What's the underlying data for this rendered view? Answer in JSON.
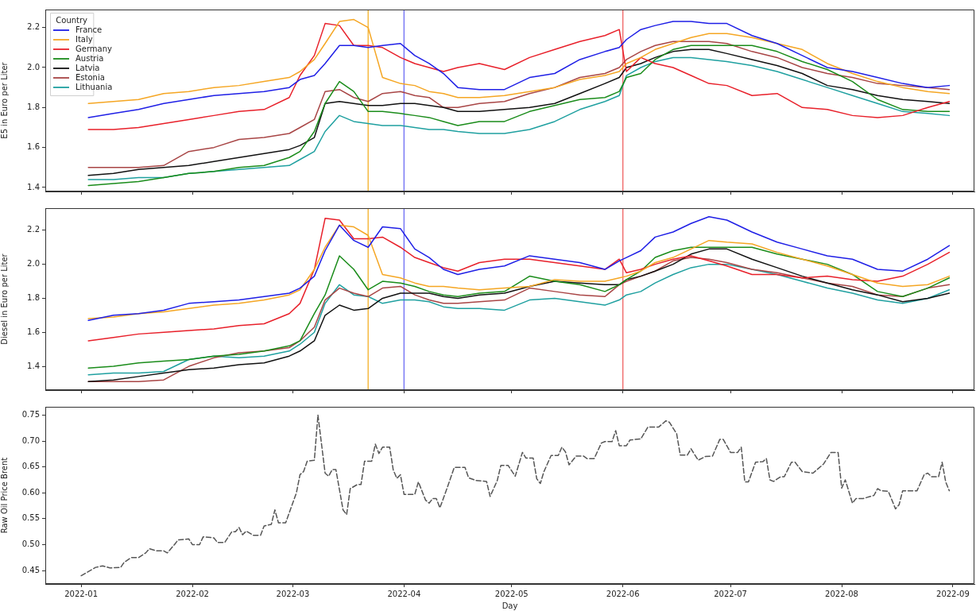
{
  "chart_data": [
    {
      "type": "line",
      "ylabel": "E5 in Euro per Liter",
      "legend": "top left",
      "legend_title": "Country",
      "tick_labels": "y",
      "x": [
        "2022-01-03",
        "2022-01-10",
        "2022-01-17",
        "2022-01-24",
        "2022-01-31",
        "2022-02-07",
        "2022-02-14",
        "2022-02-21",
        "2022-02-28",
        "2022-03-03",
        "2022-03-07",
        "2022-03-10",
        "2022-03-14",
        "2022-03-18",
        "2022-03-22",
        "2022-03-26",
        "2022-03-31",
        "2022-04-04",
        "2022-04-08",
        "2022-04-12",
        "2022-04-16",
        "2022-04-22",
        "2022-04-29",
        "2022-05-06",
        "2022-05-13",
        "2022-05-20",
        "2022-05-27",
        "2022-05-31",
        "2022-06-02",
        "2022-06-06",
        "2022-06-10",
        "2022-06-15",
        "2022-06-20",
        "2022-06-25",
        "2022-06-30",
        "2022-07-07",
        "2022-07-14",
        "2022-07-21",
        "2022-07-28",
        "2022-08-04",
        "2022-08-11",
        "2022-08-18",
        "2022-08-25",
        "2022-08-31"
      ],
      "xlim": [
        "2021-12-22",
        "2022-09-07"
      ],
      "xticks": [
        {
          "value": "2022-01-01",
          "label": null
        },
        {
          "value": "2022-02-01",
          "label": null
        },
        {
          "value": "2022-03-01",
          "label": null
        },
        {
          "value": "2022-04-01",
          "label": null
        },
        {
          "value": "2022-05-01",
          "label": null
        },
        {
          "value": "2022-06-01",
          "label": null
        },
        {
          "value": "2022-07-01",
          "label": null
        },
        {
          "value": "2022-08-01",
          "label": null
        },
        {
          "value": "2022-09-01",
          "label": null
        }
      ],
      "ylim": [
        1.38,
        2.29
      ],
      "yticks": [
        {
          "value": 1.4,
          "label": "1.4"
        },
        {
          "value": 1.6,
          "label": "1.6"
        },
        {
          "value": 1.8,
          "label": "1.8"
        },
        {
          "value": 2,
          "label": "2.0"
        },
        {
          "value": 2.2,
          "label": "2.2"
        }
      ],
      "ref_lines": [
        {
          "axis": "x",
          "value": "2022-03-22",
          "color": "#f5b942"
        },
        {
          "axis": "x",
          "value": "2022-04-01",
          "color": "#7a7af5"
        },
        {
          "axis": "x",
          "value": "2022-06-01",
          "color": "#f07070"
        }
      ],
      "series": [
        {
          "name": "France",
          "color": "#1f1fe6",
          "values": [
            1.75,
            1.77,
            1.79,
            1.82,
            1.84,
            1.86,
            1.87,
            1.88,
            1.9,
            1.94,
            1.96,
            2.02,
            2.11,
            2.11,
            2.1,
            2.11,
            2.12,
            2.06,
            2.02,
            1.97,
            1.9,
            1.89,
            1.89,
            1.95,
            1.97,
            2.04,
            2.08,
            2.1,
            2.14,
            2.19,
            2.21,
            2.23,
            2.23,
            2.22,
            2.22,
            2.16,
            2.12,
            2.06,
            2.0,
            1.98,
            1.95,
            1.92,
            1.9,
            1.91
          ]
        },
        {
          "name": "Italy",
          "color": "#f5a623",
          "values": [
            1.82,
            1.83,
            1.84,
            1.87,
            1.88,
            1.9,
            1.91,
            1.93,
            1.95,
            1.98,
            2.04,
            2.12,
            2.23,
            2.24,
            2.2,
            1.95,
            1.92,
            1.91,
            1.88,
            1.87,
            1.85,
            1.85,
            1.86,
            1.88,
            1.9,
            1.94,
            1.96,
            1.98,
            2.02,
            2.05,
            2.09,
            2.12,
            2.15,
            2.17,
            2.17,
            2.15,
            2.12,
            2.09,
            2.02,
            1.97,
            1.93,
            1.9,
            1.88,
            1.87
          ]
        },
        {
          "name": "Germany",
          "color": "#e8202a",
          "values": [
            1.69,
            1.69,
            1.7,
            1.72,
            1.74,
            1.76,
            1.78,
            1.79,
            1.85,
            1.96,
            2.06,
            2.22,
            2.21,
            2.11,
            2.11,
            2.1,
            2.05,
            2.02,
            2.0,
            1.98,
            2.0,
            2.02,
            1.99,
            2.05,
            2.09,
            2.13,
            2.16,
            2.19,
            1.98,
            2.05,
            2.02,
            2.0,
            1.96,
            1.92,
            1.91,
            1.86,
            1.87,
            1.8,
            1.79,
            1.76,
            1.75,
            1.76,
            1.8,
            1.83
          ]
        },
        {
          "name": "Austria",
          "color": "#1a8c1a",
          "values": [
            1.41,
            1.42,
            1.43,
            1.45,
            1.47,
            1.48,
            1.5,
            1.51,
            1.55,
            1.58,
            1.68,
            1.82,
            1.93,
            1.88,
            1.78,
            1.78,
            1.77,
            1.76,
            1.75,
            1.73,
            1.71,
            1.73,
            1.73,
            1.78,
            1.81,
            1.84,
            1.85,
            1.88,
            1.95,
            1.97,
            2.04,
            2.09,
            2.11,
            2.11,
            2.11,
            2.11,
            2.08,
            2.03,
            1.99,
            1.93,
            1.84,
            1.79,
            1.78,
            1.78
          ]
        },
        {
          "name": "Latvia",
          "color": "#111111",
          "values": [
            1.46,
            1.47,
            1.49,
            1.5,
            1.51,
            1.53,
            1.55,
            1.57,
            1.59,
            1.61,
            1.65,
            1.82,
            1.83,
            1.82,
            1.81,
            1.81,
            1.82,
            1.82,
            1.81,
            1.8,
            1.78,
            1.78,
            1.79,
            1.8,
            1.82,
            1.87,
            1.92,
            1.95,
            2.0,
            2.02,
            2.05,
            2.08,
            2.09,
            2.09,
            2.07,
            2.04,
            2.01,
            1.97,
            1.91,
            1.89,
            1.86,
            1.84,
            1.83,
            1.82
          ]
        },
        {
          "name": "Estonia",
          "color": "#a84545",
          "values": [
            1.5,
            1.5,
            1.5,
            1.51,
            1.58,
            1.6,
            1.64,
            1.65,
            1.67,
            1.7,
            1.74,
            1.88,
            1.89,
            1.85,
            1.83,
            1.87,
            1.88,
            1.86,
            1.85,
            1.8,
            1.8,
            1.82,
            1.83,
            1.87,
            1.9,
            1.95,
            1.97,
            2.0,
            2.04,
            2.08,
            2.11,
            2.13,
            2.13,
            2.13,
            2.12,
            2.08,
            2.05,
            2.0,
            1.97,
            1.95,
            1.92,
            1.91,
            1.9,
            1.89
          ]
        },
        {
          "name": "Lithuania",
          "color": "#1fa0a0",
          "values": [
            1.44,
            1.44,
            1.45,
            1.45,
            1.47,
            1.48,
            1.49,
            1.5,
            1.51,
            1.54,
            1.58,
            1.68,
            1.76,
            1.73,
            1.72,
            1.71,
            1.71,
            1.7,
            1.69,
            1.69,
            1.68,
            1.67,
            1.67,
            1.69,
            1.73,
            1.79,
            1.83,
            1.86,
            1.96,
            2.0,
            2.03,
            2.05,
            2.05,
            2.04,
            2.03,
            2.01,
            1.98,
            1.94,
            1.9,
            1.86,
            1.82,
            1.78,
            1.77,
            1.76
          ]
        }
      ]
    },
    {
      "type": "line",
      "ylabel": "Diesel in Euro per Liter",
      "tick_labels": "y",
      "x": [
        "2022-01-03",
        "2022-01-10",
        "2022-01-17",
        "2022-01-24",
        "2022-01-31",
        "2022-02-07",
        "2022-02-14",
        "2022-02-21",
        "2022-02-28",
        "2022-03-03",
        "2022-03-07",
        "2022-03-10",
        "2022-03-14",
        "2022-03-18",
        "2022-03-22",
        "2022-03-26",
        "2022-03-31",
        "2022-04-04",
        "2022-04-08",
        "2022-04-12",
        "2022-04-16",
        "2022-04-22",
        "2022-04-29",
        "2022-05-06",
        "2022-05-13",
        "2022-05-20",
        "2022-05-27",
        "2022-05-31",
        "2022-06-02",
        "2022-06-06",
        "2022-06-10",
        "2022-06-15",
        "2022-06-20",
        "2022-06-25",
        "2022-06-30",
        "2022-07-07",
        "2022-07-14",
        "2022-07-21",
        "2022-07-28",
        "2022-08-04",
        "2022-08-11",
        "2022-08-18",
        "2022-08-25",
        "2022-08-31"
      ],
      "xlim": [
        "2021-12-22",
        "2022-09-07"
      ],
      "xticks": [
        {
          "value": "2022-01-01",
          "label": null
        },
        {
          "value": "2022-02-01",
          "label": null
        },
        {
          "value": "2022-03-01",
          "label": null
        },
        {
          "value": "2022-04-01",
          "label": null
        },
        {
          "value": "2022-05-01",
          "label": null
        },
        {
          "value": "2022-06-01",
          "label": null
        },
        {
          "value": "2022-07-01",
          "label": null
        },
        {
          "value": "2022-08-01",
          "label": null
        },
        {
          "value": "2022-09-01",
          "label": null
        }
      ],
      "ylim": [
        1.26,
        2.33
      ],
      "yticks": [
        {
          "value": 1.4,
          "label": "1.4"
        },
        {
          "value": 1.6,
          "label": "1.6"
        },
        {
          "value": 1.8,
          "label": "1.8"
        },
        {
          "value": 2,
          "label": "2.0"
        },
        {
          "value": 2.2,
          "label": "2.2"
        }
      ],
      "ref_lines": [
        {
          "axis": "x",
          "value": "2022-03-22",
          "color": "#f5b942"
        },
        {
          "axis": "x",
          "value": "2022-04-01",
          "color": "#7a7af5"
        },
        {
          "axis": "x",
          "value": "2022-06-01",
          "color": "#f07070"
        }
      ],
      "series": [
        {
          "color": "#1f1fe6",
          "values": [
            1.67,
            1.7,
            1.71,
            1.73,
            1.77,
            1.78,
            1.79,
            1.81,
            1.83,
            1.86,
            1.93,
            2.08,
            2.23,
            2.14,
            2.1,
            2.22,
            2.21,
            2.09,
            2.04,
            1.97,
            1.94,
            1.97,
            1.99,
            2.05,
            2.03,
            2.01,
            1.97,
            2.02,
            2.04,
            2.08,
            2.16,
            2.19,
            2.24,
            2.28,
            2.26,
            2.19,
            2.13,
            2.09,
            2.05,
            2.03,
            1.97,
            1.96,
            2.03,
            2.11
          ]
        },
        {
          "color": "#f5a623",
          "values": [
            1.68,
            1.69,
            1.71,
            1.72,
            1.74,
            1.76,
            1.77,
            1.79,
            1.82,
            1.85,
            1.97,
            2.1,
            2.23,
            2.22,
            2.17,
            1.94,
            1.92,
            1.89,
            1.87,
            1.87,
            1.86,
            1.85,
            1.86,
            1.87,
            1.91,
            1.9,
            1.9,
            1.92,
            1.93,
            1.96,
            2.01,
            2.04,
            2.09,
            2.14,
            2.13,
            2.12,
            2.07,
            2.03,
            1.99,
            1.94,
            1.89,
            1.87,
            1.88,
            1.93
          ]
        },
        {
          "color": "#e8202a",
          "values": [
            1.55,
            1.57,
            1.59,
            1.6,
            1.61,
            1.62,
            1.64,
            1.65,
            1.71,
            1.77,
            1.97,
            2.27,
            2.26,
            2.15,
            2.15,
            2.16,
            2.1,
            2.04,
            2.01,
            1.98,
            1.96,
            2.01,
            2.03,
            2.03,
            2.01,
            1.99,
            1.97,
            2.03,
            1.95,
            1.97,
            2.0,
            2.03,
            2.05,
            2.02,
            1.99,
            1.94,
            1.94,
            1.92,
            1.93,
            1.91,
            1.9,
            1.93,
            2.0,
            2.07
          ]
        },
        {
          "color": "#1a8c1a",
          "values": [
            1.39,
            1.4,
            1.42,
            1.43,
            1.44,
            1.46,
            1.47,
            1.49,
            1.52,
            1.55,
            1.71,
            1.82,
            2.05,
            1.97,
            1.85,
            1.9,
            1.89,
            1.87,
            1.84,
            1.82,
            1.81,
            1.83,
            1.84,
            1.93,
            1.9,
            1.88,
            1.84,
            1.88,
            1.91,
            1.96,
            2.04,
            2.08,
            2.1,
            2.1,
            2.1,
            2.1,
            2.06,
            2.03,
            2.0,
            1.94,
            1.84,
            1.81,
            1.86,
            1.92
          ]
        },
        {
          "color": "#111111",
          "values": [
            1.31,
            1.32,
            1.34,
            1.36,
            1.38,
            1.39,
            1.41,
            1.42,
            1.46,
            1.49,
            1.55,
            1.7,
            1.76,
            1.73,
            1.74,
            1.8,
            1.83,
            1.83,
            1.83,
            1.81,
            1.8,
            1.82,
            1.83,
            1.87,
            1.9,
            1.89,
            1.88,
            1.88,
            1.91,
            1.93,
            1.96,
            2.0,
            2.06,
            2.09,
            2.09,
            2.03,
            1.98,
            1.93,
            1.89,
            1.85,
            1.82,
            1.78,
            1.8,
            1.83
          ]
        },
        {
          "color": "#a84545",
          "values": [
            1.31,
            1.31,
            1.31,
            1.32,
            1.4,
            1.45,
            1.48,
            1.49,
            1.51,
            1.55,
            1.63,
            1.79,
            1.86,
            1.83,
            1.81,
            1.86,
            1.87,
            1.82,
            1.79,
            1.77,
            1.77,
            1.78,
            1.79,
            1.86,
            1.84,
            1.82,
            1.81,
            1.88,
            1.9,
            1.93,
            1.96,
            2.02,
            2.04,
            2.03,
            2.01,
            1.97,
            1.95,
            1.92,
            1.89,
            1.87,
            1.82,
            1.81,
            1.86,
            1.88
          ]
        },
        {
          "color": "#1fa0a0",
          "values": [
            1.35,
            1.36,
            1.36,
            1.37,
            1.44,
            1.46,
            1.45,
            1.46,
            1.49,
            1.53,
            1.6,
            1.77,
            1.88,
            1.82,
            1.81,
            1.77,
            1.79,
            1.79,
            1.78,
            1.75,
            1.74,
            1.74,
            1.73,
            1.79,
            1.8,
            1.78,
            1.76,
            1.79,
            1.82,
            1.84,
            1.89,
            1.94,
            1.98,
            2.0,
            2.0,
            1.97,
            1.94,
            1.9,
            1.86,
            1.83,
            1.79,
            1.77,
            1.8,
            1.85
          ]
        }
      ]
    },
    {
      "type": "line",
      "ylabel": "Raw Oil Price Brent",
      "xlabel": "Day",
      "line_style": "dashed",
      "x": [
        "2022-01-01",
        "2022-01-05",
        "2022-01-07",
        "2022-01-09",
        "2022-01-12",
        "2022-01-13",
        "2022-01-15",
        "2022-01-17",
        "2022-01-19",
        "2022-01-20",
        "2022-01-22",
        "2022-01-24",
        "2022-01-25",
        "2022-01-27",
        "2022-01-28",
        "2022-01-31",
        "2022-02-01",
        "2022-02-03",
        "2022-02-04",
        "2022-02-07",
        "2022-02-08",
        "2022-02-10",
        "2022-02-12",
        "2022-02-13",
        "2022-02-14",
        "2022-02-15",
        "2022-02-16",
        "2022-02-18",
        "2022-02-20",
        "2022-02-21",
        "2022-02-23",
        "2022-02-24",
        "2022-02-25",
        "2022-02-27",
        "2022-03-02",
        "2022-03-03",
        "2022-03-04",
        "2022-03-05",
        "2022-03-07",
        "2022-03-08",
        "2022-03-10",
        "2022-03-11",
        "2022-03-12",
        "2022-03-13",
        "2022-03-15",
        "2022-03-16",
        "2022-03-17",
        "2022-03-19",
        "2022-03-20",
        "2022-03-21",
        "2022-03-23",
        "2022-03-24",
        "2022-03-25",
        "2022-03-26",
        "2022-03-28",
        "2022-03-29",
        "2022-03-30",
        "2022-03-31",
        "2022-04-01",
        "2022-04-04",
        "2022-04-05",
        "2022-04-07",
        "2022-04-08",
        "2022-04-09",
        "2022-04-10",
        "2022-04-11",
        "2022-04-13",
        "2022-04-15",
        "2022-04-18",
        "2022-04-19",
        "2022-04-21",
        "2022-04-24",
        "2022-04-25",
        "2022-04-27",
        "2022-04-28",
        "2022-04-30",
        "2022-05-02",
        "2022-05-04",
        "2022-05-05",
        "2022-05-07",
        "2022-05-08",
        "2022-05-09",
        "2022-05-10",
        "2022-05-12",
        "2022-05-14",
        "2022-05-15",
        "2022-05-16",
        "2022-05-17",
        "2022-05-19",
        "2022-05-21",
        "2022-05-22",
        "2022-05-24",
        "2022-05-26",
        "2022-05-27",
        "2022-05-29",
        "2022-05-30",
        "2022-05-31",
        "2022-06-02",
        "2022-06-03",
        "2022-06-06",
        "2022-06-08",
        "2022-06-11",
        "2022-06-13",
        "2022-06-14",
        "2022-06-16",
        "2022-06-17",
        "2022-06-19",
        "2022-06-20",
        "2022-06-22",
        "2022-06-24",
        "2022-06-26",
        "2022-06-28",
        "2022-06-29",
        "2022-07-01",
        "2022-07-03",
        "2022-07-04",
        "2022-07-05",
        "2022-07-06",
        "2022-07-08",
        "2022-07-10",
        "2022-07-11",
        "2022-07-12",
        "2022-07-13",
        "2022-07-15",
        "2022-07-16",
        "2022-07-18",
        "2022-07-19",
        "2022-07-21",
        "2022-07-24",
        "2022-07-27",
        "2022-07-28",
        "2022-07-29",
        "2022-07-31",
        "2022-08-01",
        "2022-08-02",
        "2022-08-04",
        "2022-08-05",
        "2022-08-07",
        "2022-08-09",
        "2022-08-10",
        "2022-08-11",
        "2022-08-12",
        "2022-08-14",
        "2022-08-16",
        "2022-08-17",
        "2022-08-18",
        "2022-08-22",
        "2022-08-24",
        "2022-08-25",
        "2022-08-26",
        "2022-08-28",
        "2022-08-29",
        "2022-08-30",
        "2022-08-31"
      ],
      "xlim": [
        "2021-12-22",
        "2022-09-07"
      ],
      "xticks": [
        {
          "value": "2022-01-01",
          "label": "2022-01"
        },
        {
          "value": "2022-02-01",
          "label": "2022-02"
        },
        {
          "value": "2022-03-01",
          "label": "2022-03"
        },
        {
          "value": "2022-04-01",
          "label": "2022-04"
        },
        {
          "value": "2022-05-01",
          "label": "2022-05"
        },
        {
          "value": "2022-06-01",
          "label": "2022-06"
        },
        {
          "value": "2022-07-01",
          "label": "2022-07"
        },
        {
          "value": "2022-08-01",
          "label": "2022-08"
        },
        {
          "value": "2022-09-01",
          "label": "2022-09"
        }
      ],
      "ylim": [
        0.424,
        0.766
      ],
      "yticks": [
        {
          "value": 0.45,
          "label": "0.45"
        },
        {
          "value": 0.5,
          "label": "0.50"
        },
        {
          "value": 0.55,
          "label": "0.55"
        },
        {
          "value": 0.6,
          "label": "0.60"
        },
        {
          "value": 0.65,
          "label": "0.65"
        },
        {
          "value": 0.7,
          "label": "0.70"
        },
        {
          "value": 0.75,
          "label": "0.75"
        }
      ],
      "series": [
        {
          "color": "#555555",
          "values": [
            0.44,
            0.456,
            0.459,
            0.455,
            0.456,
            0.466,
            0.475,
            0.475,
            0.484,
            0.492,
            0.488,
            0.488,
            0.484,
            0.5,
            0.509,
            0.511,
            0.5,
            0.5,
            0.515,
            0.513,
            0.504,
            0.504,
            0.525,
            0.525,
            0.533,
            0.519,
            0.526,
            0.518,
            0.518,
            0.536,
            0.539,
            0.567,
            0.542,
            0.542,
            0.6,
            0.635,
            0.641,
            0.661,
            0.663,
            0.75,
            0.638,
            0.632,
            0.645,
            0.645,
            0.567,
            0.558,
            0.608,
            0.616,
            0.616,
            0.661,
            0.661,
            0.694,
            0.676,
            0.688,
            0.688,
            0.644,
            0.628,
            0.635,
            0.597,
            0.597,
            0.621,
            0.586,
            0.58,
            0.589,
            0.589,
            0.571,
            0.609,
            0.649,
            0.649,
            0.629,
            0.624,
            0.622,
            0.593,
            0.624,
            0.653,
            0.653,
            0.632,
            0.678,
            0.667,
            0.667,
            0.627,
            0.618,
            0.641,
            0.672,
            0.672,
            0.688,
            0.679,
            0.654,
            0.671,
            0.671,
            0.666,
            0.666,
            0.696,
            0.699,
            0.699,
            0.72,
            0.691,
            0.691,
            0.702,
            0.704,
            0.727,
            0.727,
            0.739,
            0.736,
            0.714,
            0.673,
            0.673,
            0.685,
            0.663,
            0.67,
            0.671,
            0.703,
            0.703,
            0.678,
            0.678,
            0.688,
            0.621,
            0.621,
            0.659,
            0.66,
            0.666,
            0.625,
            0.622,
            0.631,
            0.631,
            0.659,
            0.659,
            0.641,
            0.638,
            0.656,
            0.667,
            0.678,
            0.678,
            0.609,
            0.625,
            0.58,
            0.589,
            0.589,
            0.593,
            0.595,
            0.608,
            0.604,
            0.603,
            0.569,
            0.577,
            0.604,
            0.604,
            0.635,
            0.638,
            0.631,
            0.631,
            0.659,
            0.621,
            0.604
          ]
        }
      ]
    }
  ]
}
